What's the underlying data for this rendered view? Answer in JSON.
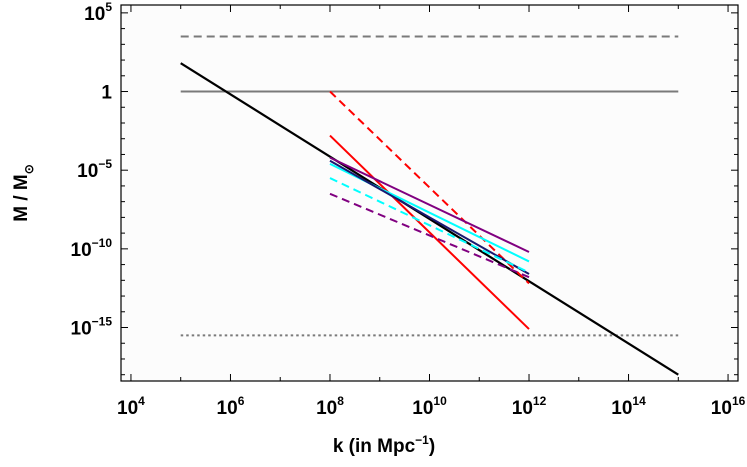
{
  "chart_data": {
    "type": "line",
    "xlabel": "k  (in Mpc",
    "xlabel_sup": "−1",
    "xlabel_close": ")",
    "ylabel_main": "M / M",
    "ylabel_sub": "⊙",
    "x_scale": "log",
    "y_scale": "log",
    "xlim_exp": [
      3.8,
      16.2
    ],
    "ylim_exp": [
      -18.4,
      5.5
    ],
    "grid": false,
    "frame_color": "#000000",
    "background": "#fcfcfc",
    "x_ticks": [
      {
        "base": "10",
        "exp": "4",
        "value_exp": 4
      },
      {
        "base": "10",
        "exp": "6",
        "value_exp": 6
      },
      {
        "base": "10",
        "exp": "8",
        "value_exp": 8
      },
      {
        "base": "10",
        "exp": "10",
        "value_exp": 10
      },
      {
        "base": "10",
        "exp": "12",
        "value_exp": 12
      },
      {
        "base": "10",
        "exp": "14",
        "value_exp": 14
      },
      {
        "base": "10",
        "exp": "16",
        "value_exp": 16
      }
    ],
    "y_ticks": [
      {
        "base": "10",
        "exp": "5",
        "value_exp": 5
      },
      {
        "base": "1",
        "exp": "",
        "value_exp": 0
      },
      {
        "base": "10",
        "exp": "−5",
        "value_exp": -5
      },
      {
        "base": "10",
        "exp": "−10",
        "value_exp": -10
      },
      {
        "base": "10",
        "exp": "−15",
        "value_exp": -15
      }
    ],
    "series": [
      {
        "color": "#7a7a7a",
        "dash": "dashed",
        "width": 2,
        "x_exp": [
          5,
          15
        ],
        "y_exp": [
          3.5,
          3.5
        ]
      },
      {
        "color": "#7a7a7a",
        "dash": "solid",
        "width": 2,
        "x_exp": [
          5,
          15
        ],
        "y_exp": [
          0,
          0
        ]
      },
      {
        "color": "#7a7a7a",
        "dash": "dotted",
        "width": 2,
        "x_exp": [
          5,
          15
        ],
        "y_exp": [
          -15.5,
          -15.5
        ]
      },
      {
        "color": "#000000",
        "dash": "solid",
        "width": 2.2,
        "x_exp": [
          5,
          15
        ],
        "y_exp": [
          1.8,
          -18.0
        ]
      },
      {
        "color": "#ff0000",
        "dash": "dashed",
        "width": 2,
        "x_exp": [
          8,
          12
        ],
        "y_exp": [
          0,
          -12.2
        ]
      },
      {
        "color": "#ff0000",
        "dash": "solid",
        "width": 2,
        "x_exp": [
          8,
          12
        ],
        "y_exp": [
          -2.8,
          -15.1
        ]
      },
      {
        "color": "#800080",
        "dash": "solid",
        "width": 2,
        "x_exp": [
          8,
          12
        ],
        "y_exp": [
          -4.2,
          -10.2
        ]
      },
      {
        "color": "#00ffff",
        "dash": "solid",
        "width": 2,
        "x_exp": [
          8,
          12
        ],
        "y_exp": [
          -4.6,
          -10.8
        ]
      },
      {
        "color": "#191970",
        "dash": "solid",
        "width": 2,
        "x_exp": [
          8,
          12
        ],
        "y_exp": [
          -4.4,
          -11.6
        ]
      },
      {
        "color": "#00ffff",
        "dash": "dashed",
        "width": 2,
        "x_exp": [
          8,
          12
        ],
        "y_exp": [
          -5.5,
          -11.5
        ]
      },
      {
        "color": "#800080",
        "dash": "dashed",
        "width": 2,
        "x_exp": [
          8,
          12
        ],
        "y_exp": [
          -6.5,
          -11.8
        ]
      }
    ]
  }
}
